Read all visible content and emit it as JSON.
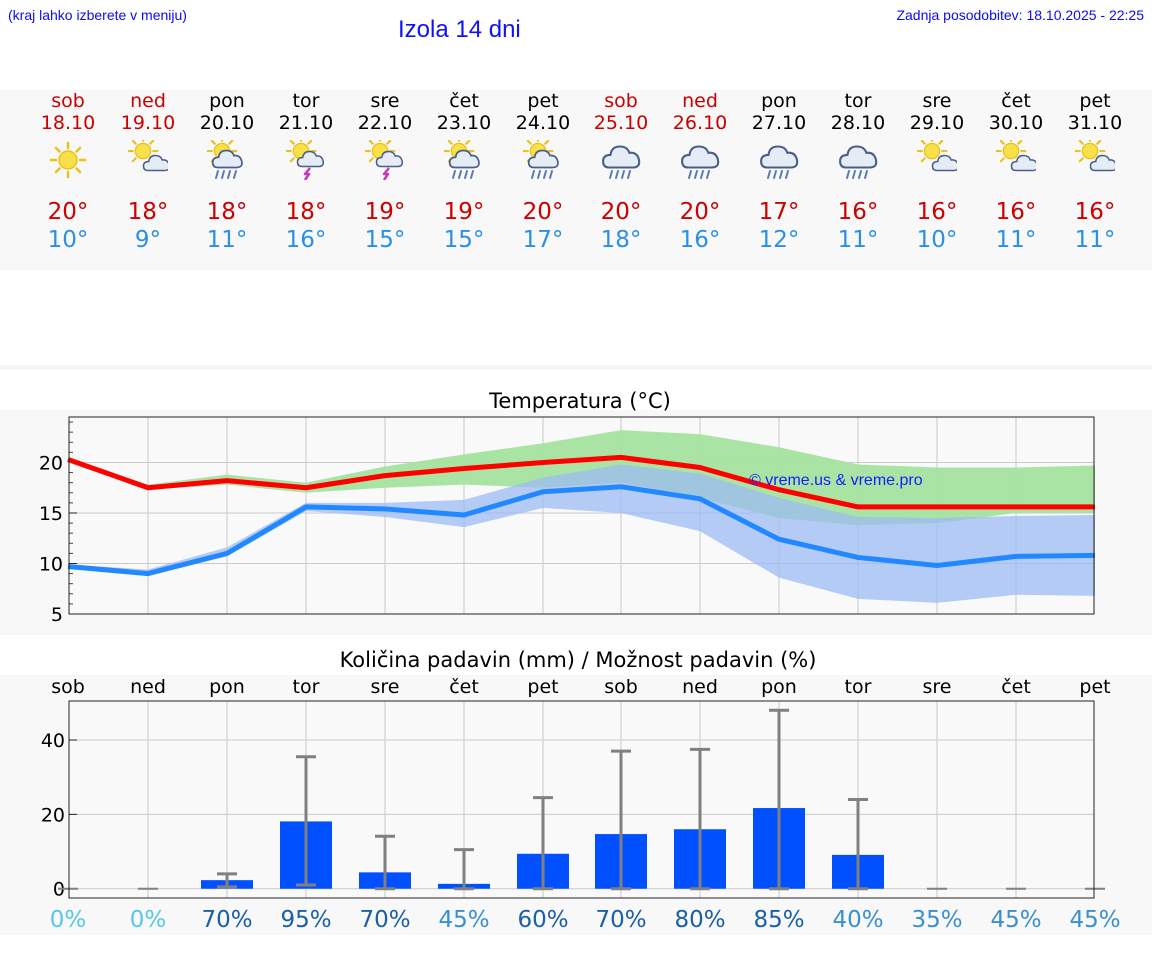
{
  "header": {
    "hint": "(kraj lahko izberete v meniju)",
    "title": "Izola 14 dni",
    "updated": "Zadnja posodobitev: 18.10.2025 - 22:25"
  },
  "colors": {
    "max": "#cc0000",
    "min": "#2b8fe8",
    "weekend": "#cc0000",
    "bars": "#0050ff"
  },
  "days": [
    {
      "name": "sob",
      "date": "18.10",
      "weekend": true,
      "icon": "sun-icon",
      "max": "20°",
      "min": "10°"
    },
    {
      "name": "ned",
      "date": "19.10",
      "weekend": true,
      "icon": "sun-cloud-icon",
      "max": "18°",
      "min": "9°"
    },
    {
      "name": "pon",
      "date": "20.10",
      "weekend": false,
      "icon": "sun-cloud-rain-icon",
      "max": "18°",
      "min": "11°"
    },
    {
      "name": "tor",
      "date": "21.10",
      "weekend": false,
      "icon": "sun-thunder-icon",
      "max": "18°",
      "min": "16°"
    },
    {
      "name": "sre",
      "date": "22.10",
      "weekend": false,
      "icon": "sun-thunder-icon",
      "max": "19°",
      "min": "15°"
    },
    {
      "name": "čet",
      "date": "23.10",
      "weekend": false,
      "icon": "sun-cloud-rain-icon",
      "max": "19°",
      "min": "15°"
    },
    {
      "name": "pet",
      "date": "24.10",
      "weekend": false,
      "icon": "sun-cloud-rain-icon",
      "max": "20°",
      "min": "17°"
    },
    {
      "name": "sob",
      "date": "25.10",
      "weekend": true,
      "icon": "cloud-rain-icon",
      "max": "20°",
      "min": "18°"
    },
    {
      "name": "ned",
      "date": "26.10",
      "weekend": true,
      "icon": "cloud-rain-icon",
      "max": "20°",
      "min": "16°"
    },
    {
      "name": "pon",
      "date": "27.10",
      "weekend": false,
      "icon": "cloud-rain-icon",
      "max": "17°",
      "min": "12°"
    },
    {
      "name": "tor",
      "date": "28.10",
      "weekend": false,
      "icon": "cloud-rain-icon",
      "max": "16°",
      "min": "11°"
    },
    {
      "name": "sre",
      "date": "29.10",
      "weekend": false,
      "icon": "sun-cloud-icon",
      "max": "16°",
      "min": "10°"
    },
    {
      "name": "čet",
      "date": "30.10",
      "weekend": false,
      "icon": "sun-cloud-icon",
      "max": "16°",
      "min": "11°"
    },
    {
      "name": "pet",
      "date": "31.10",
      "weekend": false,
      "icon": "sun-cloud-icon",
      "max": "16°",
      "min": "11°"
    }
  ],
  "chart_data": [
    {
      "type": "line",
      "title": "Temperatura (°C)",
      "watermark": "© vreme.us & vreme.pro",
      "ylim": [
        5,
        24.5
      ],
      "yticks": [
        5,
        10,
        15,
        20
      ],
      "grid": true,
      "series": [
        {
          "name": "max",
          "color": "#ff0000",
          "values": [
            20.3,
            17.5,
            18.2,
            17.5,
            18.7,
            19.4,
            20.0,
            20.5,
            19.5,
            17.3,
            15.6,
            15.6,
            15.6,
            15.6
          ],
          "band_low": [
            20.0,
            17.3,
            17.8,
            17.0,
            17.5,
            17.8,
            17.5,
            18.0,
            16.5,
            14.5,
            13.8,
            14.0,
            15.0,
            15.0
          ],
          "band_high": [
            20.5,
            17.8,
            18.8,
            18.0,
            19.6,
            20.8,
            21.9,
            23.2,
            22.8,
            21.5,
            19.8,
            19.5,
            19.5,
            19.7
          ],
          "band_color": "#a5e3a0"
        },
        {
          "name": "min",
          "color": "#2288ff",
          "values": [
            9.7,
            9.0,
            11.0,
            15.6,
            15.4,
            14.8,
            17.1,
            17.6,
            16.4,
            12.4,
            10.6,
            9.8,
            10.7,
            10.8
          ],
          "band_low": [
            9.5,
            8.8,
            10.7,
            15.2,
            14.6,
            13.6,
            15.5,
            15.0,
            13.2,
            8.6,
            6.5,
            6.1,
            6.9,
            6.8
          ],
          "band_high": [
            9.9,
            9.4,
            11.6,
            16.0,
            16.0,
            16.3,
            18.5,
            19.8,
            18.9,
            16.5,
            14.6,
            14.5,
            14.7,
            14.8
          ],
          "band_color": "#9bbbf3"
        }
      ]
    },
    {
      "type": "bar",
      "title": "Količina padavin (mm) / Možnost padavin (%)",
      "categories": [
        "sob",
        "ned",
        "pon",
        "tor",
        "sre",
        "čet",
        "pet",
        "sob",
        "ned",
        "pon",
        "tor",
        "sre",
        "čet",
        "pet"
      ],
      "values": [
        0,
        0,
        2.3,
        18.1,
        4.4,
        1.3,
        9.4,
        14.7,
        16.0,
        21.7,
        9.1,
        0,
        0,
        0
      ],
      "err_low": [
        0,
        0,
        0.5,
        1.0,
        0,
        0,
        0,
        0,
        0,
        0,
        0,
        0,
        0,
        0
      ],
      "err_high": [
        0,
        0,
        4.0,
        35.5,
        14.1,
        10.5,
        24.5,
        37.0,
        37.5,
        48.0,
        24.0,
        0,
        0,
        0
      ],
      "ylim": [
        -2.5,
        50.5
      ],
      "yticks": [
        0,
        20,
        40
      ],
      "probability": [
        "0%",
        "0%",
        "70%",
        "95%",
        "70%",
        "45%",
        "60%",
        "70%",
        "80%",
        "85%",
        "40%",
        "35%",
        "45%",
        "45%"
      ],
      "probability_colors": [
        "#55c8e8",
        "#55c8e8",
        "#1a5fa8",
        "#1a5fa8",
        "#1a5fa8",
        "#3a8fd0",
        "#1a5fa8",
        "#1a5fa8",
        "#1a5fa8",
        "#1a5fa8",
        "#3a8fd0",
        "#3a8fd0",
        "#3a8fd0",
        "#3a8fd0"
      ]
    }
  ]
}
